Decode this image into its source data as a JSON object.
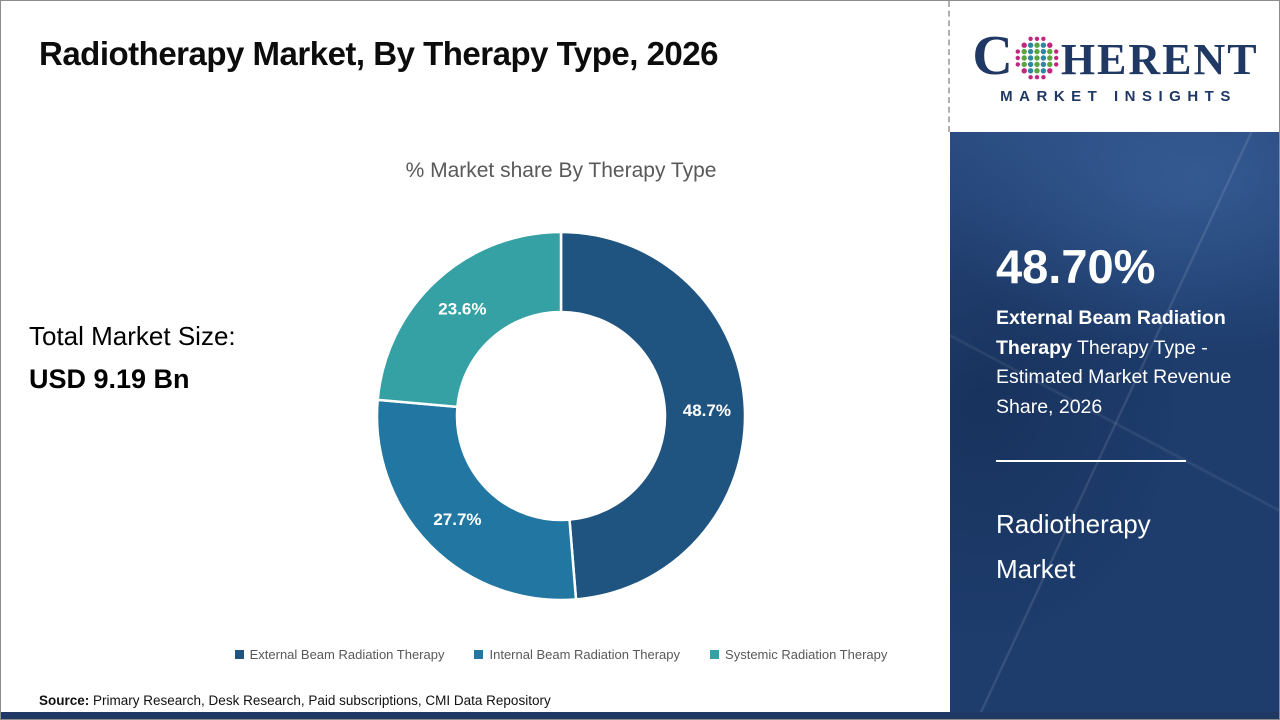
{
  "page": {
    "title": "Radiotherapy Market, By Therapy Type, 2026"
  },
  "logo": {
    "c": "C",
    "rest": "HERENT",
    "subtitle": "MARKET INSIGHTS"
  },
  "stats_left": {
    "label": "Total Market Size:",
    "value": "USD 9.19 Bn"
  },
  "chart_data": {
    "type": "pie",
    "variant": "donut",
    "title": "% Market share By Therapy Type",
    "categories": [
      "External Beam Radiation Therapy",
      "Internal Beam Radiation Therapy",
      "Systemic Radiation Therapy"
    ],
    "values": [
      48.7,
      27.7,
      23.6
    ],
    "data_labels": [
      "48.7%",
      "27.7%",
      "23.6%"
    ],
    "colors": [
      "#1f5480",
      "#2177a2",
      "#35a1a4"
    ],
    "legend_position": "bottom",
    "start_angle_deg": 0,
    "direction": "clockwise"
  },
  "sidebar": {
    "stat_value": "48.70%",
    "stat_segment": "External Beam Radiation Therapy",
    "stat_description": "Therapy Type - Estimated Market Revenue Share, 2026",
    "market_title_line1": "Radiotherapy",
    "market_title_line2": "Market"
  },
  "footer": {
    "source_label": "Source:",
    "source_text": "Primary Research, Desk Research, Paid subscriptions, CMI Data Repository"
  },
  "theme": {
    "sidebar_bg": "#1e3d6d",
    "footer_bar": "#1f3864",
    "logo_navy": "#1f3864",
    "muted_text": "#595959",
    "globe_dot_pink": "#c2267d",
    "globe_dot_green": "#5aa53f",
    "globe_dot_teal": "#2e86a0"
  }
}
